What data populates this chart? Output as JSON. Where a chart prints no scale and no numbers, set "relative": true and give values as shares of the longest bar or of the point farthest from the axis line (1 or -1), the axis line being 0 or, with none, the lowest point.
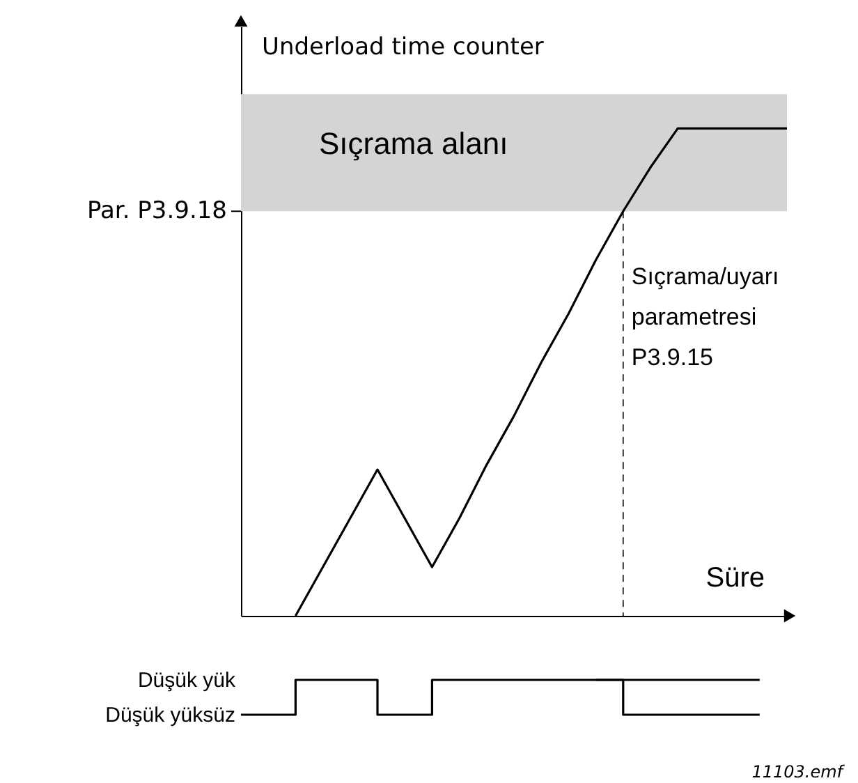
{
  "chart_data": [
    {
      "type": "line",
      "ylabel": "Underload time counter",
      "xlabel": "Süre",
      "relative": true,
      "categories": [
        null,
        null,
        null,
        null,
        null,
        null,
        null,
        null,
        null,
        null,
        null,
        null,
        null,
        null,
        null,
        null,
        null,
        null,
        null,
        null,
        null
      ],
      "series": [
        {
          "color": "#000000",
          "values": [
            null,
            null,
            0,
            0.1,
            0.2,
            0.3,
            0.2,
            0.1,
            0.2,
            0.31,
            0.41,
            0.52,
            0.62,
            0.73,
            0.83,
            0.92,
            1,
            1,
            1,
            1,
            1
          ]
        }
      ],
      "bands": [
        {
          "axis": "y",
          "from": 0.83,
          "to": 1.07,
          "label": "Sıçrama alanı",
          "color": "#d4d4d4"
        }
      ],
      "ref_lines": [
        {
          "axis": "y",
          "value": 0.83,
          "label": "Par. P3.9.18"
        }
      ],
      "annotations": [
        {
          "text": "Sıçrama/uyarı parametresi P3.9.15",
          "y": 0.83
        }
      ]
    },
    {
      "type": "step",
      "relative": true,
      "categories": [
        null,
        null,
        null,
        null,
        null,
        null,
        null,
        null,
        null,
        null,
        null,
        null,
        null,
        null,
        null,
        null,
        null,
        null,
        null,
        null,
        null
      ],
      "series": [
        {
          "color": "#000000",
          "values": [
            0,
            0,
            1,
            1,
            1,
            0,
            0,
            1,
            1,
            1,
            1,
            1,
            1,
            1,
            1,
            1,
            1,
            1,
            1,
            1,
            null
          ]
        },
        {
          "color": "#000000",
          "values": [
            null,
            null,
            null,
            null,
            null,
            null,
            null,
            null,
            null,
            null,
            null,
            null,
            null,
            1,
            0,
            0,
            0,
            0,
            0,
            0,
            null
          ]
        }
      ],
      "annotations": [
        "Düşük yük",
        "Düşük yüksüz",
        "11103.emf"
      ]
    }
  ]
}
